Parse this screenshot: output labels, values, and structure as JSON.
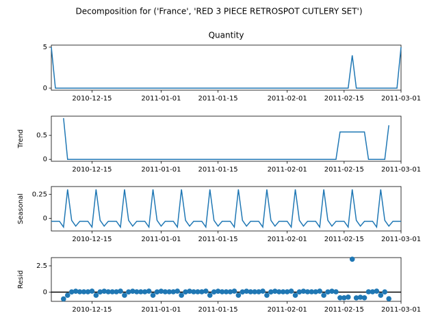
{
  "chart_data": {
    "type": "decomposition",
    "title": "Decomposition for ('France', 'RED 3 PIECE RETROSPOT CUTLERY SET')",
    "color": "#1f77b4",
    "x": [
      "2010-12-05",
      "2010-12-06",
      "2010-12-07",
      "2010-12-08",
      "2010-12-09",
      "2010-12-10",
      "2010-12-11",
      "2010-12-12",
      "2010-12-13",
      "2010-12-14",
      "2010-12-15",
      "2010-12-16",
      "2010-12-17",
      "2010-12-18",
      "2010-12-19",
      "2010-12-20",
      "2010-12-21",
      "2010-12-22",
      "2010-12-23",
      "2010-12-24",
      "2010-12-25",
      "2010-12-26",
      "2010-12-27",
      "2010-12-28",
      "2010-12-29",
      "2010-12-30",
      "2010-12-31",
      "2011-01-01",
      "2011-01-02",
      "2011-01-03",
      "2011-01-04",
      "2011-01-05",
      "2011-01-06",
      "2011-01-07",
      "2011-01-08",
      "2011-01-09",
      "2011-01-10",
      "2011-01-11",
      "2011-01-12",
      "2011-01-13",
      "2011-01-14",
      "2011-01-15",
      "2011-01-16",
      "2011-01-17",
      "2011-01-18",
      "2011-01-19",
      "2011-01-20",
      "2011-01-21",
      "2011-01-22",
      "2011-01-23",
      "2011-01-24",
      "2011-01-25",
      "2011-01-26",
      "2011-01-27",
      "2011-01-28",
      "2011-01-29",
      "2011-01-30",
      "2011-01-31",
      "2011-02-01",
      "2011-02-02",
      "2011-02-03",
      "2011-02-04",
      "2011-02-05",
      "2011-02-06",
      "2011-02-07",
      "2011-02-08",
      "2011-02-09",
      "2011-02-10",
      "2011-02-11",
      "2011-02-12",
      "2011-02-13",
      "2011-02-14",
      "2011-02-15",
      "2011-02-16",
      "2011-02-17",
      "2011-02-18",
      "2011-02-19",
      "2011-02-20",
      "2011-02-21",
      "2011-02-22",
      "2011-02-23",
      "2011-02-24",
      "2011-02-25",
      "2011-02-26",
      "2011-02-27",
      "2011-02-28",
      "2011-03-01"
    ],
    "xlim": [
      "2010-12-05",
      "2011-03-01"
    ],
    "xticks": [
      "2010-12-15",
      "2011-01-01",
      "2011-01-15",
      "2011-02-01",
      "2011-02-15",
      "2011-03-01"
    ],
    "panels": [
      {
        "type": "line",
        "title": "Quantity",
        "ylim": [
          -0.25,
          5.25
        ],
        "yticks": [
          0,
          5
        ],
        "values": [
          5,
          0,
          0,
          0,
          0,
          0,
          0,
          0,
          0,
          0,
          0,
          0,
          0,
          0,
          0,
          0,
          0,
          0,
          0,
          0,
          0,
          0,
          0,
          0,
          0,
          0,
          0,
          0,
          0,
          0,
          0,
          0,
          0,
          0,
          0,
          0,
          0,
          0,
          0,
          0,
          0,
          0,
          0,
          0,
          0,
          0,
          0,
          0,
          0,
          0,
          0,
          0,
          0,
          0,
          0,
          0,
          0,
          0,
          0,
          0,
          0,
          0,
          0,
          0,
          0,
          0,
          0,
          0,
          0,
          0,
          0,
          0,
          0,
          0,
          4,
          0,
          0,
          0,
          0,
          0,
          0,
          0,
          0,
          0,
          0,
          0,
          5
        ]
      },
      {
        "type": "line",
        "ylabel": "Trend",
        "ylim": [
          -0.04,
          0.9
        ],
        "yticks": [
          0,
          0.5
        ],
        "values": [
          null,
          null,
          null,
          0.86,
          0,
          0,
          0,
          0,
          0,
          0,
          0,
          0,
          0,
          0,
          0,
          0,
          0,
          0,
          0,
          0,
          0,
          0,
          0,
          0,
          0,
          0,
          0,
          0,
          0,
          0,
          0,
          0,
          0,
          0,
          0,
          0,
          0,
          0,
          0,
          0,
          0,
          0,
          0,
          0,
          0,
          0,
          0,
          0,
          0,
          0,
          0,
          0,
          0,
          0,
          0,
          0,
          0,
          0,
          0,
          0,
          0,
          0,
          0,
          0,
          0,
          0,
          0,
          0,
          0,
          0,
          0,
          0.57,
          0.57,
          0.57,
          0.57,
          0.57,
          0.57,
          0.57,
          0,
          0,
          0,
          0,
          0,
          0.71,
          null,
          null,
          null
        ]
      },
      {
        "type": "line",
        "ylabel": "Seasonal",
        "ylim": [
          -0.13,
          0.33
        ],
        "yticks": [
          0,
          0.25
        ],
        "values": [
          -0.03,
          -0.03,
          -0.03,
          -0.09,
          0.3,
          -0.02,
          -0.08,
          -0.03,
          -0.03,
          -0.03,
          -0.09,
          0.3,
          -0.02,
          -0.08,
          -0.03,
          -0.03,
          -0.03,
          -0.09,
          0.3,
          -0.02,
          -0.08,
          -0.03,
          -0.03,
          -0.03,
          -0.09,
          0.3,
          -0.02,
          -0.08,
          -0.03,
          -0.03,
          -0.03,
          -0.09,
          0.3,
          -0.02,
          -0.08,
          -0.03,
          -0.03,
          -0.03,
          -0.09,
          0.3,
          -0.02,
          -0.08,
          -0.03,
          -0.03,
          -0.03,
          -0.09,
          0.3,
          -0.02,
          -0.08,
          -0.03,
          -0.03,
          -0.03,
          -0.09,
          0.3,
          -0.02,
          -0.08,
          -0.03,
          -0.03,
          -0.03,
          -0.09,
          0.3,
          -0.02,
          -0.08,
          -0.03,
          -0.03,
          -0.03,
          -0.09,
          0.3,
          -0.02,
          -0.08,
          -0.03,
          -0.03,
          -0.03,
          -0.09,
          0.3,
          -0.02,
          -0.08,
          -0.03,
          -0.03,
          -0.03,
          -0.09,
          0.3,
          -0.02,
          -0.08,
          -0.03,
          -0.03,
          -0.03
        ]
      },
      {
        "type": "scatter",
        "ylabel": "Resid",
        "ylim": [
          -0.88,
          3.28
        ],
        "yticks": [
          0,
          2.5
        ],
        "values": [
          null,
          null,
          null,
          -0.65,
          -0.3,
          0.02,
          0.08,
          0.03,
          0.03,
          0.03,
          0.09,
          -0.3,
          0.02,
          0.08,
          0.03,
          0.03,
          0.03,
          0.09,
          -0.3,
          0.02,
          0.08,
          0.03,
          0.03,
          0.03,
          0.09,
          -0.3,
          0.02,
          0.08,
          0.03,
          0.03,
          0.03,
          0.09,
          -0.3,
          0.02,
          0.08,
          0.03,
          0.03,
          0.03,
          0.09,
          -0.3,
          0.02,
          0.08,
          0.03,
          0.03,
          0.03,
          0.09,
          -0.3,
          0.02,
          0.08,
          0.03,
          0.03,
          0.03,
          0.09,
          -0.3,
          0.02,
          0.08,
          0.03,
          0.03,
          0.03,
          0.09,
          -0.3,
          0.02,
          0.08,
          0.03,
          0.03,
          0.03,
          0.09,
          -0.3,
          0.02,
          0.08,
          0.03,
          -0.54,
          -0.54,
          -0.48,
          3.13,
          -0.55,
          -0.49,
          -0.54,
          0.03,
          0.03,
          0.09,
          -0.3,
          0.02,
          -0.63,
          null,
          null,
          null
        ]
      }
    ]
  }
}
